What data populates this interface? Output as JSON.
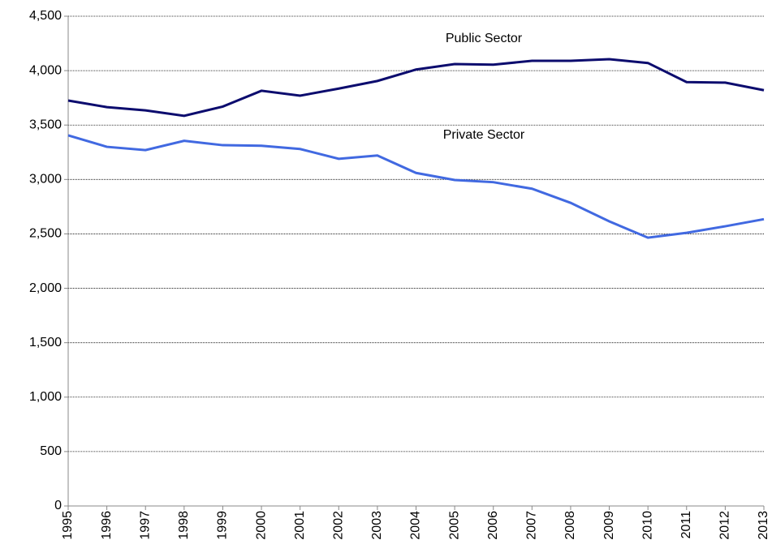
{
  "chart_data": {
    "type": "line",
    "categories": [
      "1995",
      "1996",
      "1997",
      "1998",
      "1999",
      "2000",
      "2001",
      "2002",
      "2003",
      "2004",
      "2005",
      "2006",
      "2007",
      "2008",
      "2009",
      "2010",
      "2011",
      "2012",
      "2013"
    ],
    "series": [
      {
        "name": "Public Sector",
        "color": "#0c0c6e",
        "values": [
          3725,
          3665,
          3635,
          3585,
          3670,
          3815,
          3770,
          3835,
          3905,
          4010,
          4060,
          4055,
          4090,
          4090,
          4105,
          4070,
          3895,
          3890,
          3820
        ]
      },
      {
        "name": "Private Sector",
        "color": "#4169e1",
        "values": [
          3405,
          3300,
          3270,
          3355,
          3315,
          3310,
          3280,
          3190,
          3220,
          3060,
          2995,
          2975,
          2915,
          2785,
          2615,
          2465,
          2510,
          2570,
          2635
        ]
      }
    ],
    "ylim": [
      0,
      4500
    ],
    "yticks": [
      0,
      500,
      {
        "value": 1000,
        "label": "1,000"
      },
      {
        "value": 1500,
        "label": "1,500"
      },
      {
        "value": 2000,
        "label": "2,000"
      },
      {
        "value": 2500,
        "label": "2,500"
      },
      {
        "value": 3000,
        "label": "3,000"
      },
      {
        "value": 3500,
        "label": "3,500"
      },
      {
        "value": 4000,
        "label": "4,000"
      },
      {
        "value": 4500,
        "label": "4,500"
      }
    ],
    "grid": true
  }
}
